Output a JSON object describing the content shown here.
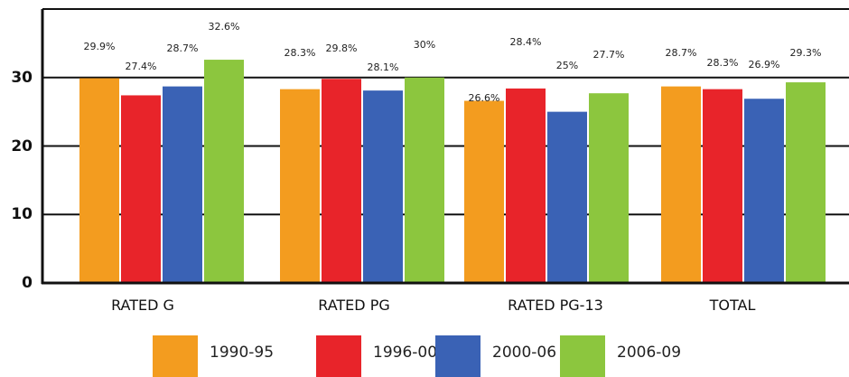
{
  "chart_data": {
    "type": "bar",
    "categories": [
      "RATED G",
      "RATED PG",
      "RATED PG-13",
      "TOTAL"
    ],
    "series": [
      {
        "name": "1990-95",
        "color": "#f39c1f",
        "values": [
          29.9,
          28.3,
          26.6,
          28.7
        ],
        "labels": [
          "29.9%",
          "28.3%",
          "26.6%",
          "28.7%"
        ]
      },
      {
        "name": "1996-00",
        "color": "#e8242a",
        "values": [
          27.4,
          29.8,
          28.4,
          28.3
        ],
        "labels": [
          "27.4%",
          "29.8%",
          "28.4%",
          "28.3%"
        ]
      },
      {
        "name": "2000-06",
        "color": "#3a62b5",
        "values": [
          28.7,
          28.1,
          25,
          26.9
        ],
        "labels": [
          "28.7%",
          "28.1%",
          "25%",
          "26.9%"
        ]
      },
      {
        "name": "2006-09",
        "color": "#8cc63e",
        "values": [
          32.6,
          30,
          27.7,
          29.3
        ],
        "labels": [
          "32.6%",
          "30%",
          "27.7%",
          "29.3%"
        ]
      }
    ],
    "yticks": [
      "0",
      "10",
      "20",
      "30"
    ],
    "ylim": [
      0,
      40
    ],
    "grid": true,
    "legend_position": "bottom"
  }
}
